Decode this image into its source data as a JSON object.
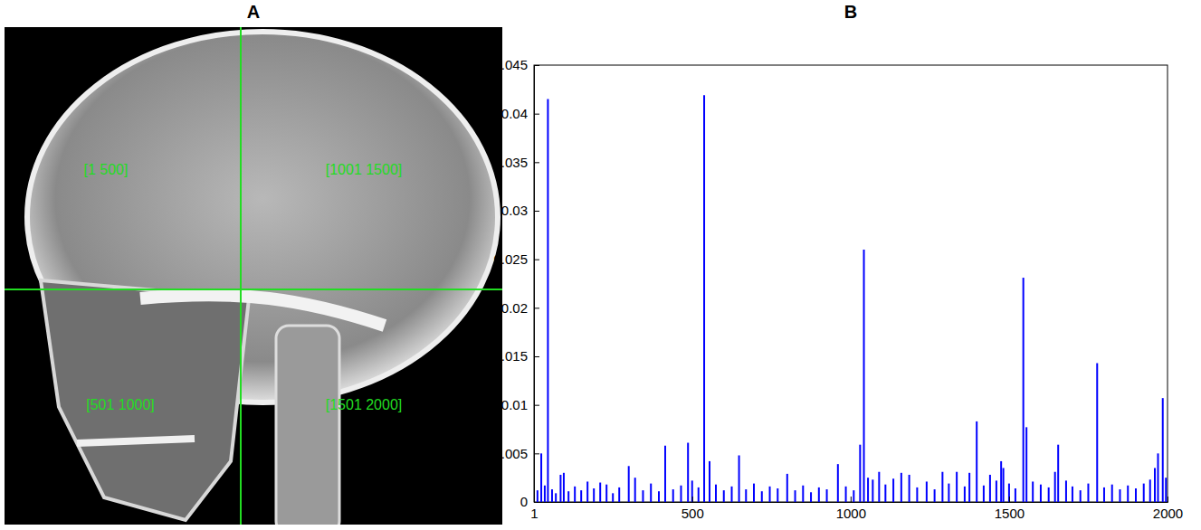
{
  "panel_letters": [
    "A",
    "B"
  ],
  "image_panel": {
    "region_labels": [
      "[1 500]",
      "[501 1000]",
      "[1001 1500]",
      "[1501 2000]"
    ]
  },
  "chart_data": {
    "type": "stem",
    "color": "#0000ff",
    "xlim": [
      1,
      2000
    ],
    "xticks": [
      1,
      500,
      1000,
      1500,
      2000
    ],
    "ylim": [
      0,
      0.045
    ],
    "yticks": [
      0,
      0.005,
      0.01,
      0.015,
      0.02,
      0.025,
      0.03,
      0.035,
      0.04,
      0.045
    ],
    "x": [
      1,
      12,
      24,
      35,
      45,
      58,
      70,
      85,
      95,
      110,
      130,
      150,
      170,
      190,
      210,
      230,
      250,
      270,
      300,
      320,
      345,
      370,
      395,
      415,
      440,
      465,
      487,
      500,
      520,
      538,
      555,
      575,
      600,
      625,
      648,
      670,
      695,
      720,
      745,
      770,
      800,
      825,
      850,
      875,
      900,
      925,
      960,
      985,
      1010,
      1030,
      1042,
      1055,
      1070,
      1090,
      1110,
      1135,
      1160,
      1185,
      1210,
      1240,
      1265,
      1290,
      1310,
      1335,
      1360,
      1375,
      1398,
      1420,
      1440,
      1460,
      1475,
      1482,
      1500,
      1520,
      1545,
      1555,
      1575,
      1600,
      1625,
      1645,
      1655,
      1680,
      1700,
      1725,
      1750,
      1778,
      1800,
      1825,
      1850,
      1875,
      1900,
      1925,
      1945,
      1960,
      1970,
      1985,
      1995
    ],
    "values": [
      0.0063,
      0.0012,
      0.005,
      0.0017,
      0.0415,
      0.0013,
      0.0009,
      0.0028,
      0.003,
      0.0011,
      0.0016,
      0.0012,
      0.0021,
      0.0014,
      0.002,
      0.0018,
      0.0009,
      0.0015,
      0.0037,
      0.0025,
      0.0012,
      0.0019,
      0.0011,
      0.0058,
      0.0013,
      0.0017,
      0.0061,
      0.0022,
      0.0015,
      0.0419,
      0.0042,
      0.0018,
      0.0012,
      0.0016,
      0.0048,
      0.0013,
      0.0019,
      0.0011,
      0.0016,
      0.0014,
      0.0029,
      0.0012,
      0.0017,
      0.001,
      0.0015,
      0.0013,
      0.0039,
      0.0016,
      0.0012,
      0.0059,
      0.026,
      0.0025,
      0.0023,
      0.0031,
      0.0018,
      0.0024,
      0.003,
      0.0028,
      0.0015,
      0.0021,
      0.0013,
      0.0031,
      0.0019,
      0.0031,
      0.0016,
      0.003,
      0.0083,
      0.0017,
      0.0028,
      0.0022,
      0.0042,
      0.0035,
      0.0019,
      0.0014,
      0.0231,
      0.0077,
      0.0021,
      0.0018,
      0.0015,
      0.0031,
      0.0059,
      0.0022,
      0.0016,
      0.0012,
      0.0019,
      0.0143,
      0.0015,
      0.0018,
      0.0013,
      0.0017,
      0.0014,
      0.0019,
      0.0023,
      0.0035,
      0.005,
      0.0107,
      0.0025
    ]
  }
}
